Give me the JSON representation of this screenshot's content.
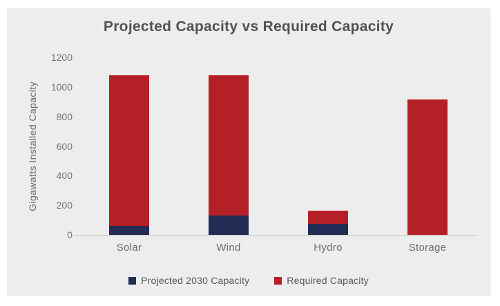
{
  "chart_data": {
    "type": "bar",
    "stacked": true,
    "title": "Projected Capacity vs Required Capacity",
    "xlabel": "",
    "ylabel": "Gigawatts Installed Capacity",
    "categories": [
      "Solar",
      "Wind",
      "Hydro",
      "Storage"
    ],
    "series": [
      {
        "name": "Projected 2030 Capacity",
        "key": "projected-2030-capacity",
        "color": "#222c55",
        "values": [
          60,
          130,
          75,
          0
        ]
      },
      {
        "name": "Required Capacity",
        "key": "required-capacity",
        "color": "#b42025",
        "values": [
          1020,
          950,
          90,
          915
        ]
      }
    ],
    "stacked_totals": [
      1080,
      1080,
      165,
      915
    ],
    "ylim": [
      0,
      1200
    ],
    "yticks": [
      0,
      200,
      400,
      600,
      800,
      1000,
      1200
    ],
    "grid": false,
    "legend_position": "bottom"
  },
  "colors": {
    "page_background": "#ffffff",
    "card_background": "#eeedee",
    "title_text": "#525255",
    "axis_text": "#737376",
    "category_text": "#6b6b6e",
    "axis_line": "#d7d6d7",
    "projected_series": "#222c55",
    "required_series": "#b42025"
  }
}
